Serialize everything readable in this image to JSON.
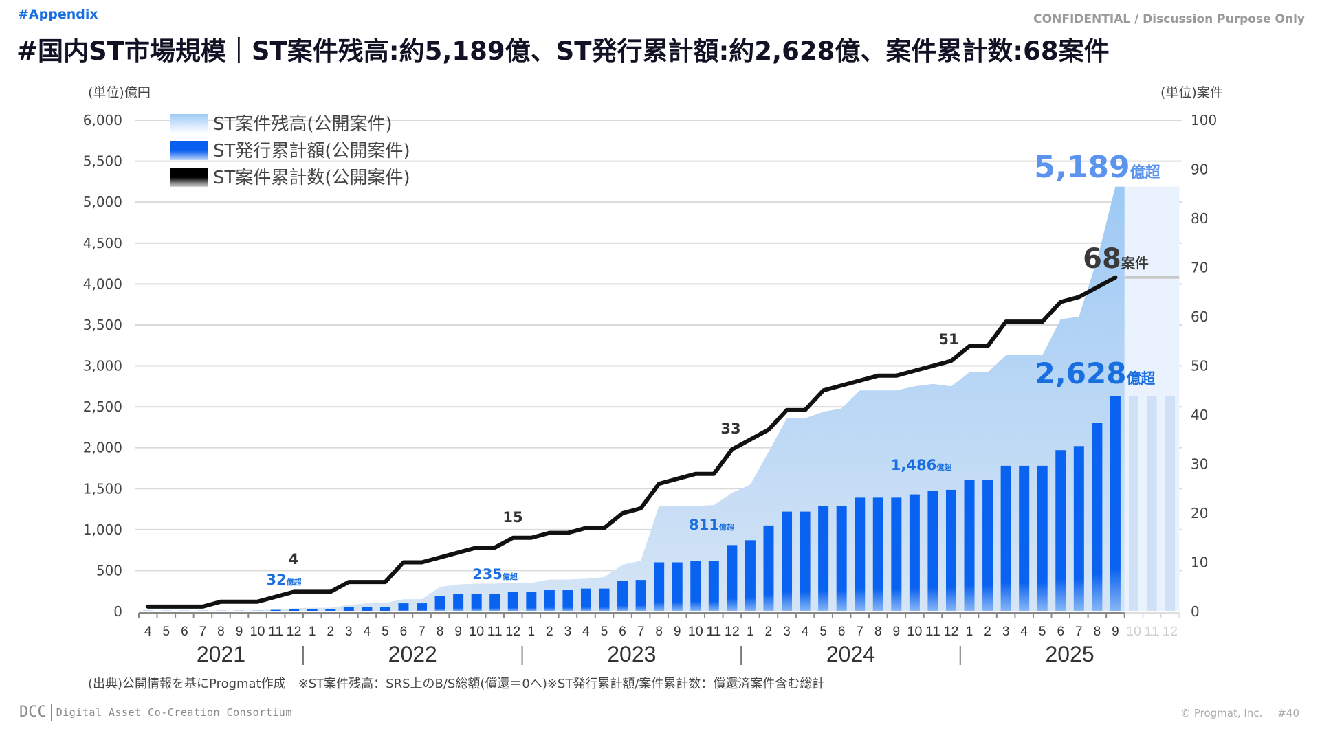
{
  "header": {
    "tag": "#Appendix",
    "confidential": "CONFIDENTIAL / Discussion Purpose Only",
    "title": "#国内ST市場規模｜ST案件残高:約5,189億、ST発行累計額:約2,628億、案件累計数:68案件"
  },
  "colors": {
    "area": "#9ec9f5",
    "area_light": "#cfe2f6",
    "bar": "#0a62f0",
    "line": "#111111",
    "label_blue": "#1a6fe0",
    "label_light_blue": "#5a94ee",
    "projection_bg": "#eaf3fd"
  },
  "chart_data": {
    "type": "bar",
    "combo": [
      "area",
      "bar",
      "line"
    ],
    "title": "国内ST市場規模",
    "ylabel_left": "(単位)億円",
    "ylabel_right": "(単位)案件",
    "ylim_left": [
      0,
      6000
    ],
    "ylim_right": [
      0,
      100
    ],
    "yticks_left": [
      "0",
      "500",
      "1,000",
      "1,500",
      "2,000",
      "2,500",
      "3,000",
      "3,500",
      "4,000",
      "4,500",
      "5,000",
      "5,500",
      "6,000"
    ],
    "yticks_right": [
      "0",
      "10",
      "20",
      "30",
      "40",
      "50",
      "60",
      "70",
      "80",
      "90",
      "100"
    ],
    "grid": true,
    "legend_position": "top-left",
    "legend": [
      "ST案件残高(公開案件)",
      "ST発行累計額(公開案件)",
      "ST案件累計数(公開案件)"
    ],
    "month_labels": [
      "4",
      "5",
      "6",
      "7",
      "8",
      "9",
      "10",
      "11",
      "12",
      "1",
      "2",
      "3",
      "4",
      "5",
      "6",
      "7",
      "8",
      "9",
      "10",
      "11",
      "12",
      "1",
      "2",
      "3",
      "4",
      "5",
      "6",
      "7",
      "8",
      "9",
      "10",
      "11",
      "12",
      "1",
      "2",
      "3",
      "4",
      "5",
      "6",
      "7",
      "8",
      "9",
      "10",
      "11",
      "12",
      "1",
      "2",
      "3",
      "4",
      "5",
      "6",
      "7",
      "8",
      "9",
      "10",
      "11",
      "12"
    ],
    "years": [
      "2021",
      "2022",
      "2023",
      "2024",
      "2025"
    ],
    "projection_months": [
      "10",
      "11",
      "12"
    ],
    "series": [
      {
        "name": "ST案件残高(公開案件)",
        "type": "area",
        "axis": "left",
        "values": [
          10,
          10,
          10,
          10,
          12,
          12,
          15,
          25,
          40,
          45,
          45,
          80,
          100,
          105,
          150,
          150,
          300,
          330,
          340,
          340,
          350,
          350,
          390,
          390,
          400,
          420,
          570,
          620,
          1290,
          1290,
          1290,
          1300,
          1450,
          1550,
          1950,
          2360,
          2360,
          2440,
          2480,
          2700,
          2700,
          2700,
          2750,
          2780,
          2750,
          2920,
          2920,
          3130,
          3130,
          3130,
          3570,
          3600,
          4300,
          5189
        ]
      },
      {
        "name": "ST発行累計額(公開案件)",
        "type": "bar",
        "axis": "left",
        "values": [
          10,
          10,
          10,
          10,
          10,
          10,
          10,
          20,
          32,
          32,
          32,
          55,
          55,
          55,
          100,
          100,
          190,
          215,
          215,
          215,
          235,
          235,
          260,
          260,
          280,
          280,
          370,
          385,
          600,
          600,
          620,
          620,
          811,
          870,
          1050,
          1220,
          1220,
          1290,
          1290,
          1390,
          1390,
          1390,
          1430,
          1470,
          1486,
          1610,
          1610,
          1780,
          1780,
          1780,
          1970,
          2020,
          2300,
          2628
        ]
      },
      {
        "name": "ST案件累計数(公開案件)",
        "type": "line",
        "axis": "right",
        "values": [
          1,
          1,
          1,
          1,
          2,
          2,
          2,
          3,
          4,
          4,
          4,
          6,
          6,
          6,
          10,
          10,
          11,
          12,
          13,
          13,
          15,
          15,
          16,
          16,
          17,
          17,
          20,
          21,
          26,
          27,
          28,
          28,
          33,
          35,
          37,
          41,
          41,
          45,
          46,
          47,
          48,
          48,
          49,
          50,
          51,
          54,
          54,
          59,
          59,
          59,
          63,
          64,
          66,
          68
        ]
      }
    ],
    "annotations": {
      "bar_labels": [
        {
          "index": 8,
          "text": "32",
          "suffix": "億超"
        },
        {
          "index": 20,
          "text": "235",
          "suffix": "億超"
        },
        {
          "index": 32,
          "text": "811",
          "suffix": "億超"
        },
        {
          "index": 44,
          "text": "1,486",
          "suffix": "億超"
        },
        {
          "index": 53,
          "text": "2,628",
          "suffix": "億超"
        }
      ],
      "area_label": {
        "index": 53,
        "text": "5,189",
        "suffix": "億超"
      },
      "line_labels": [
        {
          "index": 8,
          "text": "4"
        },
        {
          "index": 20,
          "text": "15"
        },
        {
          "index": 32,
          "text": "33"
        },
        {
          "index": 44,
          "text": "51"
        },
        {
          "index": 53,
          "text": "68",
          "suffix": "案件"
        }
      ]
    }
  },
  "footer": {
    "source": "(出典)公開情報を基にProgmat作成　※ST案件残高：SRS上のB/S総額(償還＝0へ)※ST発行累計額/案件累計数：償還済案件含む総計",
    "logo_short": "DCC",
    "logo_full": "Digital Asset Co-Creation Consortium",
    "copyright": "© Progmat, Inc.",
    "page": "#40"
  }
}
